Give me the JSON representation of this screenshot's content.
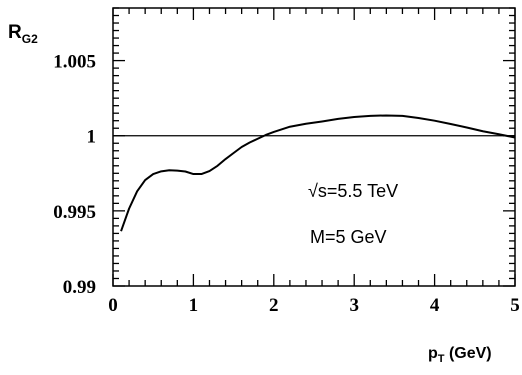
{
  "chart_data": {
    "type": "line",
    "title": "",
    "xlabel": {
      "main": "p",
      "sub": "T",
      "rest": " (GeV)"
    },
    "ylabel": {
      "main": "R",
      "sub": "G2"
    },
    "xlim": [
      0,
      5
    ],
    "ylim": [
      0.99,
      1.0085
    ],
    "x_ticks": [
      {
        "value": 0,
        "label": "0"
      },
      {
        "value": 1,
        "label": "1"
      },
      {
        "value": 2,
        "label": "2"
      },
      {
        "value": 3,
        "label": "3"
      },
      {
        "value": 4,
        "label": "4"
      },
      {
        "value": 5,
        "label": "5"
      }
    ],
    "y_ticks": [
      {
        "value": 0.99,
        "label": "0.99"
      },
      {
        "value": 0.995,
        "label": "0.995"
      },
      {
        "value": 1.0,
        "label": "1"
      },
      {
        "value": 1.005,
        "label": "1.005"
      }
    ],
    "reference_line": {
      "y": 1.0
    },
    "annotations": [
      {
        "text": "√s=5.5 TeV"
      },
      {
        "text": "M=5 GeV"
      }
    ],
    "grid": false,
    "legend": "none",
    "series": [
      {
        "x": [
          0.1,
          0.2,
          0.3,
          0.4,
          0.5,
          0.6,
          0.7,
          0.8,
          0.9,
          1.0,
          1.1,
          1.2,
          1.3,
          1.4,
          1.5,
          1.6,
          1.7,
          1.8,
          1.9,
          2.0,
          2.2,
          2.4,
          2.6,
          2.8,
          3.0,
          3.2,
          3.4,
          3.6,
          3.8,
          4.0,
          4.2,
          4.4,
          4.6,
          4.8,
          5.0
        ],
        "y": [
          0.99365,
          0.99515,
          0.9963,
          0.99705,
          0.99745,
          0.99763,
          0.9977,
          0.99768,
          0.99762,
          0.99745,
          0.99745,
          0.99765,
          0.998,
          0.99845,
          0.99885,
          0.99925,
          0.99955,
          0.9998,
          1.00005,
          1.00025,
          1.0006,
          1.0008,
          1.00095,
          1.00112,
          1.00125,
          1.00132,
          1.00135,
          1.00132,
          1.00118,
          1.001,
          1.00078,
          1.00055,
          1.0003,
          1.0001,
          0.99988
        ]
      }
    ]
  }
}
